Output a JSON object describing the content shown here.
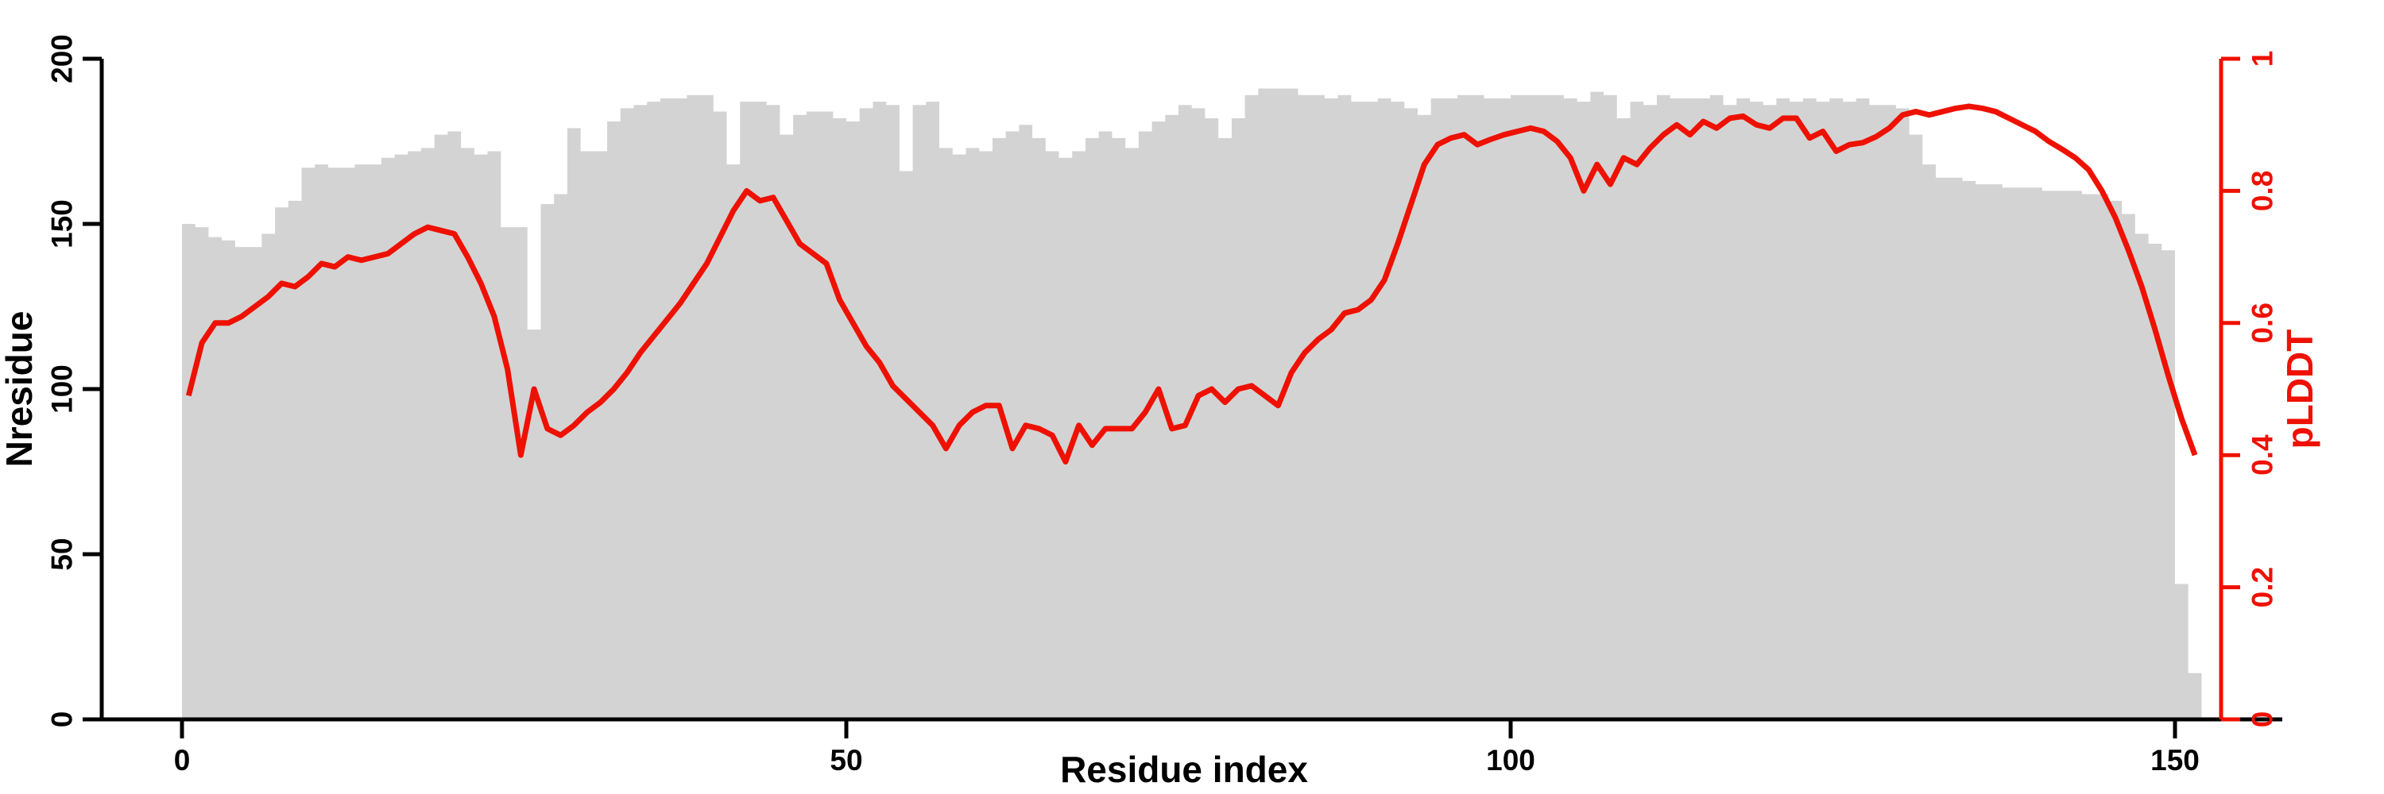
{
  "page": {
    "background": "#ffffff"
  },
  "chart_data": {
    "type": "bar",
    "title": "",
    "grid": "off",
    "legend": "none",
    "x_axis": {
      "label": "Residue index",
      "ticks": [
        "0",
        "50",
        "100",
        "150"
      ],
      "tick_values": [
        0,
        50,
        100,
        150
      ],
      "lim": [
        0,
        158
      ]
    },
    "left_axis": {
      "label": "Nresidue",
      "ticks": [
        "0",
        "50",
        "100",
        "150",
        "200"
      ],
      "tick_values": [
        0,
        50,
        100,
        150,
        200
      ],
      "lim": [
        0,
        200
      ],
      "color": "#000000"
    },
    "right_axis": {
      "label": "pLDDT",
      "ticks": [
        "0",
        "0.2",
        "0.4",
        "0.6",
        "0.8",
        "1"
      ],
      "tick_values": [
        0,
        0.2,
        0.4,
        0.6,
        0.8,
        1
      ],
      "lim": [
        0,
        1
      ],
      "color": "#ee1100"
    },
    "x_start": 0,
    "x_step": 1,
    "n_points": 152,
    "series": [
      {
        "name": "Nresidue",
        "type": "bar",
        "axis": "left",
        "color": "#d3d3d3",
        "values": [
          150,
          149,
          146,
          145,
          143,
          143,
          147,
          155,
          157,
          167,
          168,
          167,
          167,
          168,
          168,
          170,
          171,
          172,
          173,
          177,
          178,
          173,
          171,
          172,
          149,
          149,
          118,
          156,
          159,
          179,
          172,
          172,
          181,
          185,
          186,
          187,
          188,
          188,
          189,
          189,
          184,
          168,
          187,
          187,
          186,
          177,
          183,
          184,
          184,
          182,
          181,
          185,
          187,
          186,
          166,
          186,
          187,
          173,
          171,
          173,
          172,
          176,
          178,
          180,
          176,
          172,
          170,
          172,
          176,
          178,
          176,
          173,
          178,
          181,
          183,
          186,
          185,
          182,
          176,
          182,
          189,
          191,
          191,
          191,
          189,
          189,
          188,
          189,
          187,
          187,
          188,
          187,
          185,
          183,
          188,
          188,
          189,
          189,
          188,
          188,
          189,
          189,
          189,
          189,
          188,
          187,
          190,
          189,
          182,
          187,
          186,
          189,
          188,
          188,
          188,
          189,
          186,
          188,
          187,
          186,
          188,
          187,
          188,
          187,
          188,
          187,
          188,
          186,
          186,
          185,
          177,
          168,
          164,
          164,
          163,
          162,
          162,
          161,
          161,
          161,
          160,
          160,
          160,
          159,
          159,
          157,
          153,
          147,
          144,
          142,
          41,
          14
        ]
      },
      {
        "name": "pLDDT",
        "type": "line",
        "axis": "right",
        "color": "#ee1100",
        "values": [
          0.49,
          0.57,
          0.6,
          0.6,
          0.61,
          0.625,
          0.64,
          0.66,
          0.655,
          0.67,
          0.69,
          0.685,
          0.7,
          0.695,
          0.7,
          0.705,
          0.72,
          0.735,
          0.745,
          0.74,
          0.735,
          0.7,
          0.66,
          0.61,
          0.53,
          0.4,
          0.5,
          0.44,
          0.43,
          0.445,
          0.465,
          0.48,
          0.5,
          0.525,
          0.555,
          0.58,
          0.605,
          0.63,
          0.66,
          0.69,
          0.73,
          0.77,
          0.8,
          0.785,
          0.79,
          0.755,
          0.72,
          0.705,
          0.69,
          0.635,
          0.6,
          0.565,
          0.54,
          0.505,
          0.485,
          0.465,
          0.445,
          0.41,
          0.445,
          0.465,
          0.475,
          0.475,
          0.41,
          0.445,
          0.44,
          0.43,
          0.39,
          0.445,
          0.415,
          0.44,
          0.44,
          0.44,
          0.465,
          0.5,
          0.44,
          0.445,
          0.49,
          0.5,
          0.48,
          0.5,
          0.505,
          0.49,
          0.475,
          0.525,
          0.555,
          0.575,
          0.59,
          0.615,
          0.62,
          0.635,
          0.665,
          0.72,
          0.78,
          0.84,
          0.87,
          0.88,
          0.885,
          0.87,
          0.878,
          0.885,
          0.89,
          0.895,
          0.89,
          0.875,
          0.85,
          0.8,
          0.84,
          0.81,
          0.85,
          0.84,
          0.865,
          0.885,
          0.9,
          0.885,
          0.905,
          0.895,
          0.91,
          0.913,
          0.9,
          0.895,
          0.91,
          0.91,
          0.88,
          0.89,
          0.86,
          0.87,
          0.873,
          0.882,
          0.895,
          0.915,
          0.92,
          0.915,
          0.92,
          0.925,
          0.928,
          0.925,
          0.92,
          0.91,
          0.9,
          0.89,
          0.875,
          0.863,
          0.85,
          0.832,
          0.8,
          0.76,
          0.71,
          0.655,
          0.59,
          0.52,
          0.455,
          0.4
        ]
      }
    ]
  }
}
